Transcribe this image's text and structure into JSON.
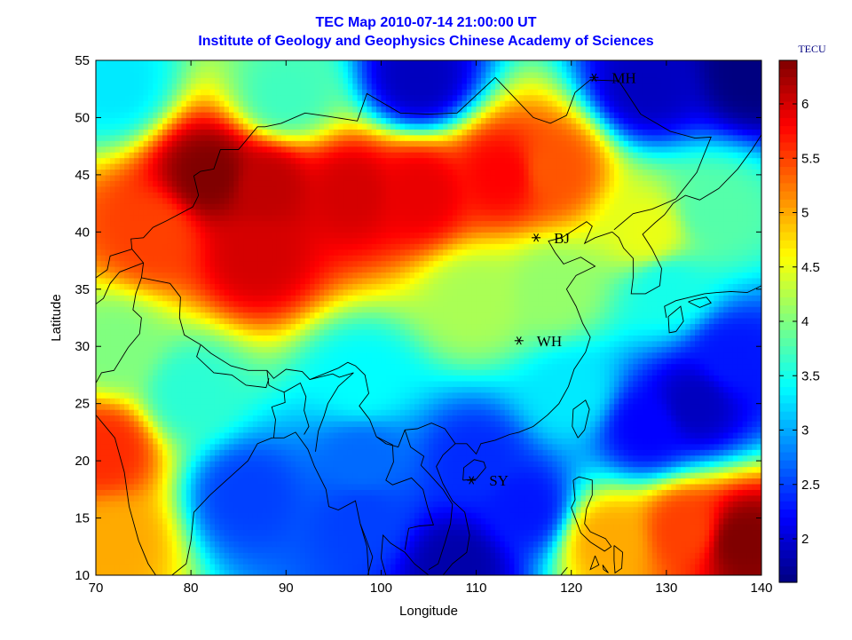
{
  "title_line1": "TEC Map 2010-07-14 21:00:00 UT",
  "title_line2": "Institute of Geology and Geophysics Chinese Academy of Sciences",
  "colorbar_title": "TECU",
  "title_color": "#0000ff",
  "chart_data": {
    "type": "heatmap",
    "xlabel": "Longitude",
    "ylabel": "Latitude",
    "xlim": [
      70,
      140
    ],
    "ylim": [
      10,
      55
    ],
    "xticks": [
      70,
      80,
      90,
      100,
      110,
      120,
      130,
      140
    ],
    "yticks": [
      10,
      15,
      20,
      25,
      30,
      35,
      40,
      45,
      50,
      55
    ],
    "colorbar": {
      "label": "TECU",
      "range": [
        1.6,
        6.4
      ],
      "ticks": [
        2,
        2.5,
        3,
        3.5,
        4,
        4.5,
        5,
        5.5,
        6
      ],
      "colormap": "jet"
    },
    "stations": [
      {
        "name": "MH",
        "lon": 122.4,
        "lat": 53.5
      },
      {
        "name": "BJ",
        "lon": 116.3,
        "lat": 39.5
      },
      {
        "name": "WH",
        "lon": 114.5,
        "lat": 30.5
      },
      {
        "name": "SY",
        "lon": 109.5,
        "lat": 18.3
      }
    ],
    "field_features": [
      {
        "lon": 82,
        "lat": 45,
        "tec": 6.4
      },
      {
        "lon": 88,
        "lat": 44,
        "tec": 6.1
      },
      {
        "lon": 97,
        "lat": 43.5,
        "tec": 6.0
      },
      {
        "lon": 104,
        "lat": 43.5,
        "tec": 5.9
      },
      {
        "lon": 113,
        "lat": 45,
        "tec": 5.8
      },
      {
        "lon": 118,
        "lat": 45.5,
        "tec": 5.4
      },
      {
        "lon": 87,
        "lat": 38,
        "tec": 6.0
      },
      {
        "lon": 76,
        "lat": 40,
        "tec": 5.5
      },
      {
        "lon": 71,
        "lat": 21,
        "tec": 5.6
      },
      {
        "lon": 72,
        "lat": 13,
        "tec": 5.0
      },
      {
        "lon": 138,
        "lat": 13,
        "tec": 6.4
      },
      {
        "lon": 132,
        "lat": 14,
        "tec": 5.5
      },
      {
        "lon": 124,
        "lat": 13,
        "tec": 5.0
      },
      {
        "lon": 104,
        "lat": 53.5,
        "tec": 1.9
      },
      {
        "lon": 128,
        "lat": 53,
        "tec": 1.9
      },
      {
        "lon": 139,
        "lat": 54,
        "tec": 1.6
      },
      {
        "lon": 133,
        "lat": 25,
        "tec": 1.9
      },
      {
        "lon": 128,
        "lat": 23,
        "tec": 2.2
      },
      {
        "lon": 137,
        "lat": 29,
        "tec": 2.3
      },
      {
        "lon": 108,
        "lat": 11,
        "tec": 1.8
      },
      {
        "lon": 115,
        "lat": 16,
        "tec": 2.3
      },
      {
        "lon": 98,
        "lat": 20,
        "tec": 2.7
      },
      {
        "lon": 86,
        "lat": 17,
        "tec": 2.5
      },
      {
        "lon": 98,
        "lat": 15,
        "tec": 2.5
      },
      {
        "lon": 110,
        "lat": 20,
        "tec": 2.4
      },
      {
        "lon": 98,
        "lat": 27,
        "tec": 3.4
      },
      {
        "lon": 110,
        "lat": 34,
        "tec": 4.2
      },
      {
        "lon": 118,
        "lat": 35,
        "tec": 4.1
      },
      {
        "lon": 128,
        "lat": 40,
        "tec": 4.5
      },
      {
        "lon": 135,
        "lat": 42,
        "tec": 3.8
      },
      {
        "lon": 90,
        "lat": 52,
        "tec": 3.7
      },
      {
        "lon": 72,
        "lat": 53,
        "tec": 3.3
      },
      {
        "lon": 72,
        "lat": 30,
        "tec": 4.0
      },
      {
        "lon": 80,
        "lat": 26,
        "tec": 3.6
      },
      {
        "lon": 120,
        "lat": 26,
        "tec": 3.3
      },
      {
        "lon": 130,
        "lat": 35,
        "tec": 3.5
      }
    ]
  }
}
